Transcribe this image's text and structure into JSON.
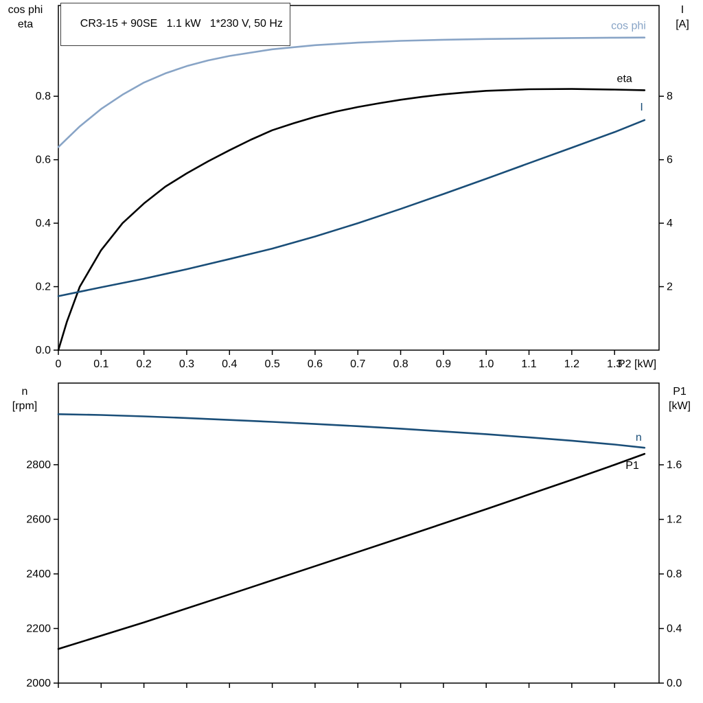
{
  "title_box": {
    "text": "CR3-15 + 90SE   1.1 kW   1*230 V, 50 Hz"
  },
  "axis_labels": {
    "top_left_line1": "cos phi",
    "top_left_line2": "eta",
    "top_right_line1": "I",
    "top_right_line2": "[A]",
    "bottom_left_line1": "n",
    "bottom_left_line2": "[rpm]",
    "bottom_right_line1": "P1",
    "bottom_right_line2": "[kW]"
  },
  "colors": {
    "black": "#000000",
    "dark_blue": "#1a4e78",
    "light_blue": "#88a4c6"
  },
  "chart_data": [
    {
      "id": "top",
      "type": "line",
      "title": "CR3-15 + 90SE   1.1 kW   1*230 V, 50 Hz",
      "x_axis": {
        "label": "P2 [kW]",
        "range": [
          0,
          1.404
        ],
        "ticks": [
          "0",
          "0.1",
          "0.2",
          "0.3",
          "0.4",
          "0.5",
          "0.6",
          "0.7",
          "0.8",
          "0.9",
          "1.0",
          "1.1",
          "1.2",
          "1.3"
        ],
        "show_tick_labels": true
      },
      "y_left": {
        "label": "cos phi / eta",
        "range": [
          0,
          1.086
        ],
        "ticks": [
          "0.0",
          "0.2",
          "0.4",
          "0.6",
          "0.8"
        ]
      },
      "y_right": {
        "label": "I [A]",
        "range": [
          0,
          10.86
        ],
        "ticks": [
          "2",
          "4",
          "6",
          "8"
        ]
      },
      "grid": false,
      "series": [
        {
          "name": "cos phi",
          "axis": "left",
          "color": "#88a4c6",
          "label_offset": [
            2,
            -12
          ],
          "x": [
            0,
            0.05,
            0.1,
            0.15,
            0.2,
            0.25,
            0.3,
            0.35,
            0.4,
            0.5,
            0.6,
            0.7,
            0.8,
            0.9,
            1.0,
            1.1,
            1.2,
            1.3,
            1.37
          ],
          "y": [
            0.64,
            0.705,
            0.76,
            0.805,
            0.843,
            0.872,
            0.895,
            0.913,
            0.927,
            0.948,
            0.961,
            0.969,
            0.9745,
            0.978,
            0.9805,
            0.982,
            0.9835,
            0.9845,
            0.985
          ]
        },
        {
          "name": "eta",
          "axis": "left",
          "color": "#000000",
          "label_offset": [
            -18,
            -12
          ],
          "x": [
            0,
            0.02,
            0.05,
            0.1,
            0.15,
            0.2,
            0.25,
            0.3,
            0.35,
            0.4,
            0.45,
            0.5,
            0.55,
            0.6,
            0.65,
            0.7,
            0.75,
            0.8,
            0.85,
            0.9,
            0.95,
            1.0,
            1.1,
            1.2,
            1.3,
            1.37
          ],
          "y": [
            0,
            0.09,
            0.2,
            0.315,
            0.4,
            0.462,
            0.515,
            0.557,
            0.595,
            0.63,
            0.663,
            0.693,
            0.715,
            0.735,
            0.752,
            0.766,
            0.778,
            0.789,
            0.798,
            0.806,
            0.812,
            0.817,
            0.822,
            0.823,
            0.821,
            0.819
          ]
        },
        {
          "name": "I",
          "axis": "right",
          "color": "#1a4e78",
          "label_offset": [
            -2,
            -14
          ],
          "x": [
            0,
            0.1,
            0.2,
            0.3,
            0.4,
            0.5,
            0.6,
            0.7,
            0.8,
            0.9,
            1.0,
            1.1,
            1.2,
            1.3,
            1.37
          ],
          "y": [
            1.7,
            1.98,
            2.25,
            2.55,
            2.87,
            3.2,
            3.58,
            4.0,
            4.45,
            4.92,
            5.4,
            5.89,
            6.38,
            6.87,
            7.25
          ]
        }
      ]
    },
    {
      "id": "bottom",
      "type": "line",
      "title": "",
      "x_axis": {
        "label": "",
        "range": [
          0,
          1.404
        ],
        "ticks": [
          "0",
          "0.1",
          "0.2",
          "0.3",
          "0.4",
          "0.5",
          "0.6",
          "0.7",
          "0.8",
          "0.9",
          "1.0",
          "1.1",
          "1.2",
          "1.3"
        ],
        "show_tick_labels": false
      },
      "y_left": {
        "label": "n [rpm]",
        "range": [
          2000,
          3099
        ],
        "ticks": [
          "2000",
          "2200",
          "2400",
          "2600",
          "2800"
        ]
      },
      "y_right": {
        "label": "P1 [kW]",
        "range": [
          0,
          2.199
        ],
        "ticks": [
          "0.0",
          "0.4",
          "0.8",
          "1.2",
          "1.6"
        ]
      },
      "grid": false,
      "series": [
        {
          "name": "n",
          "axis": "left",
          "color": "#1a4e78",
          "label_offset": [
            -4,
            -10
          ],
          "x": [
            0,
            0.1,
            0.2,
            0.3,
            0.4,
            0.5,
            0.6,
            0.7,
            0.8,
            0.9,
            1.0,
            1.1,
            1.2,
            1.3,
            1.37
          ],
          "y": [
            2985,
            2982,
            2977,
            2971,
            2964,
            2957,
            2949,
            2941,
            2932,
            2922,
            2912,
            2900,
            2888,
            2874,
            2862
          ]
        },
        {
          "name": "P1",
          "axis": "right",
          "color": "#000000",
          "label_offset": [
            -8,
            22
          ],
          "x": [
            0,
            0.2,
            0.4,
            0.6,
            0.8,
            1.0,
            1.2,
            1.3,
            1.37
          ],
          "y": [
            0.25,
            0.445,
            0.65,
            0.857,
            1.065,
            1.275,
            1.49,
            1.6,
            1.68
          ]
        }
      ]
    }
  ]
}
